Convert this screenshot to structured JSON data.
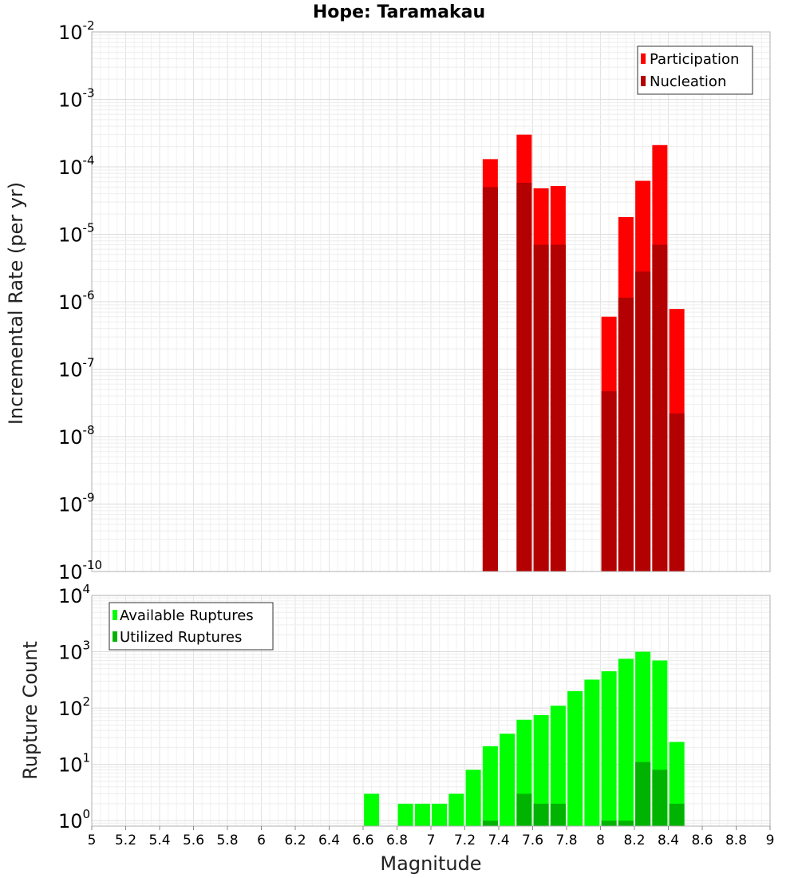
{
  "chart_data": [
    {
      "type": "bar",
      "title": "Hope: Taramakau",
      "ylabel": "Incremental Rate (per yr)",
      "xlabel": "",
      "yscale": "log",
      "ylim": [
        1e-10,
        0.01
      ],
      "xlim": [
        5,
        9
      ],
      "legend_position": "top-right",
      "y_ticks": [
        {
          "base": "10",
          "exp": "-10",
          "value": 1e-10
        },
        {
          "base": "10",
          "exp": "-9",
          "value": 1e-09
        },
        {
          "base": "10",
          "exp": "-8",
          "value": 1e-08
        },
        {
          "base": "10",
          "exp": "-7",
          "value": 1e-07
        },
        {
          "base": "10",
          "exp": "-6",
          "value": 1e-06
        },
        {
          "base": "10",
          "exp": "-5",
          "value": 1e-05
        },
        {
          "base": "10",
          "exp": "-4",
          "value": 0.0001
        },
        {
          "base": "10",
          "exp": "-3",
          "value": 0.001
        },
        {
          "base": "10",
          "exp": "-2",
          "value": 0.01
        }
      ],
      "series": [
        {
          "name": "Participation",
          "color": "#ff0000",
          "x": [
            7.35,
            7.55,
            7.65,
            7.75,
            8.05,
            8.15,
            8.25,
            8.35,
            8.45
          ],
          "values": [
            0.00013,
            0.0003,
            4.8e-05,
            5.2e-05,
            6e-07,
            1.8e-05,
            6.2e-05,
            0.00021,
            7.8e-07
          ]
        },
        {
          "name": "Nucleation",
          "color": "#b30000",
          "x": [
            7.35,
            7.55,
            7.65,
            7.75,
            8.05,
            8.15,
            8.25,
            8.35,
            8.45
          ],
          "values": [
            5e-05,
            5.8e-05,
            7e-06,
            7e-06,
            4.7e-08,
            1.15e-06,
            2.8e-06,
            7e-06,
            2.2e-08
          ]
        }
      ]
    },
    {
      "type": "bar",
      "title": "",
      "ylabel": "Rupture Count",
      "xlabel": "Magnitude",
      "yscale": "log",
      "ylim": [
        0.8,
        10000
      ],
      "xlim": [
        5,
        9
      ],
      "legend_position": "top-left",
      "x_ticks": [
        "5",
        "5.2",
        "5.4",
        "5.6",
        "5.8",
        "6",
        "6.2",
        "6.4",
        "6.6",
        "6.8",
        "7",
        "7.2",
        "7.4",
        "7.6",
        "7.8",
        "8",
        "8.2",
        "8.4",
        "8.6",
        "8.8",
        "9"
      ],
      "y_ticks": [
        {
          "base": "10",
          "exp": "0",
          "value": 1
        },
        {
          "base": "10",
          "exp": "1",
          "value": 10
        },
        {
          "base": "10",
          "exp": "2",
          "value": 100
        },
        {
          "base": "10",
          "exp": "3",
          "value": 1000
        },
        {
          "base": "10",
          "exp": "4",
          "value": 10000
        }
      ],
      "series": [
        {
          "name": "Available Ruptures",
          "color": "#00ff00",
          "x": [
            6.65,
            6.85,
            6.95,
            7.05,
            7.15,
            7.25,
            7.35,
            7.45,
            7.55,
            7.65,
            7.75,
            7.85,
            7.95,
            8.05,
            8.15,
            8.25,
            8.35,
            8.45
          ],
          "values": [
            3,
            2,
            2,
            2,
            3,
            8,
            21,
            35,
            62,
            75,
            110,
            200,
            320,
            450,
            750,
            1000,
            700,
            25
          ]
        },
        {
          "name": "Utilized Ruptures",
          "color": "#00b300",
          "x": [
            7.35,
            7.55,
            7.65,
            7.75,
            8.05,
            8.15,
            8.25,
            8.35,
            8.45
          ],
          "values": [
            1,
            3,
            2,
            2,
            1,
            1,
            11,
            8,
            2
          ]
        }
      ]
    }
  ]
}
